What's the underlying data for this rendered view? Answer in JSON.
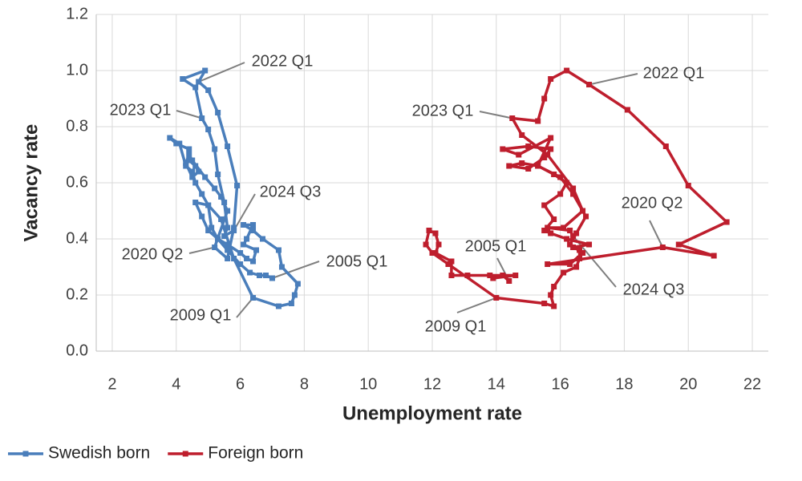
{
  "chart_data": {
    "type": "line",
    "xlabel": "Unemployment rate",
    "ylabel": "Vacancy rate",
    "xlim": [
      1.5,
      22.5
    ],
    "xticks": [
      2,
      4,
      6,
      8,
      10,
      12,
      14,
      16,
      18,
      20,
      22
    ],
    "ylim": [
      0,
      1.2
    ],
    "yticks": [
      {
        "value": 0,
        "label": "0.0"
      },
      0.2,
      0.4,
      0.6,
      0.8,
      {
        "value": 1,
        "label": "1.0"
      },
      1.2
    ],
    "grid": true,
    "legend": "bottom-left",
    "series": [
      {
        "name": "Swedish born",
        "color": "#4a7ebb",
        "x": [
          7.0,
          6.8,
          6.6,
          6.3,
          6.0,
          5.6,
          5.3,
          5.0,
          4.8,
          4.6,
          5.0,
          5.4,
          5.8,
          6.4,
          7.2,
          7.6,
          7.7,
          7.8,
          7.3,
          7.2,
          6.7,
          6.4,
          6.1,
          6.4,
          6.2,
          6.1,
          6.5,
          6.4,
          6.2,
          6.0,
          5.6,
          5.3,
          5.1,
          5.0,
          4.8,
          4.6,
          4.5,
          4.3,
          4.1,
          3.8,
          4.0,
          4.4,
          4.4,
          4.6,
          4.7,
          4.5,
          4.3,
          4.4,
          4.5,
          4.9,
          5.2,
          5.4,
          5.6,
          5.2,
          5.6,
          5.8,
          5.9,
          5.6,
          5.3,
          5.0,
          4.7,
          4.9,
          4.2,
          4.6,
          4.8,
          5.0,
          5.2,
          5.3,
          5.5,
          5.6,
          5.5,
          5.8
        ],
        "values": [
          0.26,
          0.27,
          0.27,
          0.28,
          0.31,
          0.36,
          0.4,
          0.43,
          0.48,
          0.53,
          0.52,
          0.47,
          0.33,
          0.19,
          0.16,
          0.17,
          0.2,
          0.24,
          0.3,
          0.36,
          0.4,
          0.43,
          0.45,
          0.45,
          0.4,
          0.38,
          0.36,
          0.32,
          0.33,
          0.35,
          0.38,
          0.4,
          0.44,
          0.52,
          0.56,
          0.6,
          0.64,
          0.66,
          0.74,
          0.76,
          0.74,
          0.72,
          0.68,
          0.66,
          0.64,
          0.62,
          0.67,
          0.7,
          0.68,
          0.62,
          0.58,
          0.55,
          0.5,
          0.37,
          0.33,
          0.44,
          0.59,
          0.73,
          0.85,
          0.93,
          0.96,
          1.0,
          0.97,
          0.94,
          0.83,
          0.79,
          0.72,
          0.63,
          0.53,
          0.44,
          0.41,
          0.43
        ]
      },
      {
        "name": "Foreign born",
        "color": "#be1e2d",
        "x": [
          14.4,
          14.2,
          13.9,
          14.6,
          13.8,
          13.1,
          12.6,
          12.6,
          12.1,
          12.2,
          12.1,
          11.9,
          11.8,
          12.0,
          12.5,
          14.0,
          15.5,
          15.8,
          15.7,
          15.8,
          16.1,
          16.5,
          16.6,
          16.6,
          16.4,
          16.9,
          16.2,
          15.7,
          15.5,
          15.8,
          15.5,
          16.0,
          16.2,
          15.8,
          15.3,
          14.8,
          14.4,
          15.0,
          15.5,
          15.7,
          15.0,
          14.2,
          14.7,
          15.7,
          15.3,
          16.0,
          16.4,
          16.8,
          16.5,
          16.3,
          16.7,
          16.3,
          15.6,
          19.2,
          20.8,
          19.7,
          21.2,
          20.0,
          19.3,
          18.1,
          16.9,
          16.2,
          15.7,
          15.5,
          15.3,
          14.5,
          14.8,
          15.6,
          16.4,
          16.7,
          16.1,
          15.6,
          16.3,
          16.4
        ],
        "values": [
          0.25,
          0.27,
          0.26,
          0.27,
          0.27,
          0.27,
          0.27,
          0.32,
          0.35,
          0.38,
          0.42,
          0.43,
          0.38,
          0.35,
          0.31,
          0.19,
          0.17,
          0.16,
          0.2,
          0.23,
          0.28,
          0.3,
          0.33,
          0.36,
          0.37,
          0.38,
          0.4,
          0.42,
          0.43,
          0.47,
          0.52,
          0.56,
          0.6,
          0.63,
          0.66,
          0.67,
          0.66,
          0.65,
          0.69,
          0.72,
          0.73,
          0.72,
          0.7,
          0.76,
          0.66,
          0.62,
          0.56,
          0.48,
          0.42,
          0.38,
          0.35,
          0.31,
          0.31,
          0.37,
          0.34,
          0.38,
          0.46,
          0.59,
          0.73,
          0.86,
          0.95,
          1.0,
          0.97,
          0.9,
          0.82,
          0.83,
          0.77,
          0.7,
          0.58,
          0.5,
          0.44,
          0.44,
          0.43,
          0.41
        ]
      }
    ],
    "annotations": [
      {
        "text": "2022 Q1",
        "x": 4.7,
        "y": 0.96
      },
      {
        "text": "2023 Q1",
        "x": 4.8,
        "y": 0.83
      },
      {
        "text": "2024 Q3",
        "x": 5.8,
        "y": 0.43
      },
      {
        "text": "2020 Q2",
        "x": 5.2,
        "y": 0.37
      },
      {
        "text": "2005 Q1",
        "x": 7.0,
        "y": 0.26
      },
      {
        "text": "2009 Q1",
        "x": 6.4,
        "y": 0.19
      },
      {
        "text": "2022 Q1",
        "x": 16.9,
        "y": 0.95
      },
      {
        "text": "2023 Q1",
        "x": 14.5,
        "y": 0.83
      },
      {
        "text": "2020 Q2",
        "x": 19.2,
        "y": 0.37
      },
      {
        "text": "2005 Q1",
        "x": 14.4,
        "y": 0.25
      },
      {
        "text": "2024 Q3",
        "x": 16.4,
        "y": 0.41
      },
      {
        "text": "2009 Q1",
        "x": 14.0,
        "y": 0.19
      }
    ]
  }
}
